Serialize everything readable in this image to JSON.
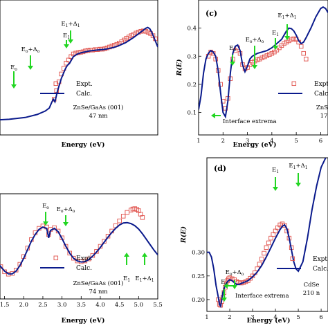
{
  "chart_data": [
    {
      "type": "scatter",
      "panel": "b",
      "title": "",
      "xlabel": "Energy (eV)",
      "ylabel": "",
      "xlim": [
        1.2,
        5.3
      ],
      "ylim": [
        0.15,
        0.46
      ],
      "xticks": [],
      "yticks": [],
      "legend": {
        "position": "right",
        "entries": [
          "Expt.",
          "Calc."
        ]
      },
      "sample_lines": [
        "ZnSe/GaAs (001)",
        "47 nm"
      ],
      "colors": {
        "expt": "#e0504a",
        "calc": "#0a1a8c",
        "arrow": "#22d622"
      },
      "annotations": [
        {
          "text": "E₀",
          "x": 2.7
        },
        {
          "text": "E₀+Δ₀",
          "x": 3.1
        },
        {
          "text": "E₁+Δ₁",
          "x": 5.05
        },
        {
          "text": "E₁",
          "x": 4.85
        }
      ],
      "series": [
        {
          "name": "Expt.",
          "marker": "open-square",
          "x": [
            2.72,
            2.78,
            2.84,
            2.9,
            2.96,
            3.02,
            3.08,
            3.14,
            3.2,
            3.26,
            3.32,
            3.38,
            3.44,
            3.5,
            3.56,
            3.62,
            3.68,
            3.74,
            3.8,
            3.86,
            3.92,
            3.98,
            4.04,
            4.1,
            4.16,
            4.22,
            4.28,
            4.34,
            4.4,
            4.46,
            4.52,
            4.58,
            4.64,
            4.7,
            4.76,
            4.82,
            4.88,
            4.94,
            5.0,
            5.06,
            5.12,
            5.18,
            5.24
          ],
          "y": [
            0.232,
            0.252,
            0.272,
            0.29,
            0.303,
            0.315,
            0.322,
            0.33,
            0.336,
            0.338,
            0.339,
            0.34,
            0.341,
            0.343,
            0.344,
            0.345,
            0.345,
            0.346,
            0.346,
            0.347,
            0.347,
            0.348,
            0.35,
            0.352,
            0.354,
            0.356,
            0.358,
            0.361,
            0.364,
            0.368,
            0.372,
            0.375,
            0.378,
            0.381,
            0.384,
            0.386,
            0.388,
            0.389,
            0.388,
            0.386,
            0.383,
            0.378,
            0.371
          ]
        },
        {
          "name": "Calc.",
          "line": "solid",
          "x": [
            1.2,
            1.6,
            2.0,
            2.3,
            2.5,
            2.6,
            2.66,
            2.7,
            2.74,
            2.8,
            2.9,
            3.0,
            3.05,
            3.1,
            3.15,
            3.2,
            3.3,
            3.4,
            3.5,
            3.6,
            3.7,
            3.8,
            3.9,
            4.0,
            4.1,
            4.2,
            4.3,
            4.4,
            4.5,
            4.6,
            4.7,
            4.8,
            4.9,
            5.0,
            5.05,
            5.1,
            5.15,
            5.2,
            5.3
          ],
          "y": [
            0.184,
            0.186,
            0.19,
            0.197,
            0.205,
            0.212,
            0.225,
            0.232,
            0.226,
            0.25,
            0.28,
            0.302,
            0.31,
            0.314,
            0.322,
            0.33,
            0.336,
            0.339,
            0.341,
            0.343,
            0.344,
            0.345,
            0.346,
            0.347,
            0.349,
            0.351,
            0.354,
            0.358,
            0.362,
            0.368,
            0.374,
            0.381,
            0.388,
            0.395,
            0.397,
            0.394,
            0.386,
            0.375,
            0.352
          ]
        }
      ]
    },
    {
      "type": "line",
      "panel": "c",
      "title": "",
      "xlabel": "Energy (eV)",
      "ylabel": "R(E)",
      "xlim": [
        1,
        6.3
      ],
      "ylim": [
        0.02,
        0.5
      ],
      "xticks": [
        "1",
        "2",
        "3",
        "4",
        "5",
        "6"
      ],
      "yticks": [
        "0.1",
        "0.2",
        "0.3",
        "0.4"
      ],
      "panel_label": "(c)",
      "legend": {
        "position": "right",
        "entries": [
          "Expt.",
          "Calc."
        ]
      },
      "sample_lines": [
        "ZnSe",
        "17"
      ],
      "colors": {
        "expt": "#e0504a",
        "calc": "#0a1a8c",
        "arrow": "#22d622"
      },
      "annotations": [
        {
          "text": "Interface extrema",
          "x": 2.2
        },
        {
          "text": "E₀",
          "x": 2.6
        },
        {
          "text": "E₀+Δ₀",
          "x": 3.1
        },
        {
          "text": "E₁",
          "x": 4.7
        },
        {
          "text": "E₁+Δ₁",
          "x": 5.0
        }
      ],
      "series": [
        {
          "name": "Expt.",
          "marker": "open-square",
          "x": [
            1.4,
            1.5,
            1.6,
            1.7,
            1.8,
            1.9,
            2.0,
            2.1,
            2.2,
            2.3,
            2.4,
            2.5,
            2.6,
            2.7,
            2.8,
            2.9,
            3.0,
            3.1,
            3.2,
            3.3,
            3.4,
            3.5,
            3.6,
            3.7,
            3.8,
            3.9,
            4.0,
            4.1,
            4.2,
            4.3,
            4.4,
            4.5,
            4.6,
            4.7,
            4.8,
            4.9,
            5.0,
            5.1,
            5.2,
            5.3,
            5.4
          ],
          "y": [
            0.3,
            0.315,
            0.31,
            0.29,
            0.25,
            0.2,
            0.14,
            0.115,
            0.15,
            0.22,
            0.29,
            0.32,
            0.33,
            0.31,
            0.27,
            0.255,
            0.26,
            0.27,
            0.278,
            0.283,
            0.287,
            0.29,
            0.294,
            0.298,
            0.302,
            0.306,
            0.31,
            0.315,
            0.322,
            0.33,
            0.338,
            0.345,
            0.35,
            0.355,
            0.36,
            0.362,
            0.36,
            0.35,
            0.335,
            0.31,
            0.29
          ]
        },
        {
          "name": "Calc.",
          "line": "solid",
          "x": [
            1.0,
            1.1,
            1.2,
            1.3,
            1.4,
            1.5,
            1.6,
            1.7,
            1.8,
            1.9,
            2.0,
            2.1,
            2.2,
            2.3,
            2.4,
            2.5,
            2.6,
            2.7,
            2.8,
            2.9,
            3.0,
            3.1,
            3.2,
            3.4,
            3.6,
            3.8,
            4.0,
            4.2,
            4.4,
            4.5,
            4.6,
            4.7,
            4.8,
            4.9,
            5.0,
            5.1,
            5.2,
            5.3,
            5.4,
            5.6,
            5.8,
            6.0,
            6.1,
            6.2,
            6.3
          ],
          "y": [
            0.11,
            0.16,
            0.24,
            0.29,
            0.31,
            0.32,
            0.315,
            0.3,
            0.25,
            0.17,
            0.1,
            0.085,
            0.14,
            0.24,
            0.31,
            0.335,
            0.34,
            0.32,
            0.27,
            0.245,
            0.265,
            0.29,
            0.3,
            0.31,
            0.315,
            0.32,
            0.33,
            0.345,
            0.36,
            0.375,
            0.39,
            0.4,
            0.398,
            0.39,
            0.375,
            0.355,
            0.345,
            0.35,
            0.365,
            0.4,
            0.44,
            0.47,
            0.475,
            0.47,
            0.455
          ]
        }
      ]
    },
    {
      "type": "scatter",
      "panel": "c2",
      "title": "",
      "xlabel": "Energy (eV)",
      "ylabel": "",
      "xlim": [
        1.2,
        5.5
      ],
      "ylim": [
        0.25,
        0.56
      ],
      "xticks": [
        "1.5",
        "2.0",
        "2.5",
        "3.0",
        "3.5",
        "4.0",
        "4.5",
        "5.0",
        "5.5"
      ],
      "yticks": [],
      "legend": {
        "position": "right",
        "entries": [
          "Expt.",
          "Calc."
        ]
      },
      "sample_lines": [
        "ZnSe/GaAs (001)",
        "74 nm"
      ],
      "colors": {
        "expt": "#e0504a",
        "calc": "#0a1a8c",
        "arrow": "#22d622"
      },
      "annotations": [
        {
          "text": "E₀",
          "x": 2.65
        },
        {
          "text": "E₀+Δ₀",
          "x": 3.05
        },
        {
          "text": "E₁",
          "x": 4.8
        },
        {
          "text": "E₁+Δ₁",
          "x": 5.05
        }
      ],
      "series": [
        {
          "name": "Expt.",
          "marker": "open-square",
          "x": [
            1.3,
            1.4,
            1.5,
            1.6,
            1.7,
            1.8,
            1.9,
            2.0,
            2.1,
            2.2,
            2.3,
            2.4,
            2.5,
            2.6,
            2.65,
            2.7,
            2.8,
            2.9,
            3.0,
            3.1,
            3.2,
            3.3,
            3.4,
            3.5,
            3.6,
            3.7,
            3.8,
            3.9,
            4.0,
            4.1,
            4.2,
            4.3,
            4.4,
            4.5,
            4.6,
            4.7,
            4.8,
            4.85,
            4.9,
            4.95,
            5.0,
            5.05,
            5.1
          ],
          "y": [
            0.36,
            0.345,
            0.33,
            0.323,
            0.325,
            0.335,
            0.352,
            0.375,
            0.4,
            0.425,
            0.445,
            0.458,
            0.465,
            0.462,
            0.44,
            0.455,
            0.46,
            0.45,
            0.43,
            0.405,
            0.385,
            0.37,
            0.362,
            0.36,
            0.362,
            0.368,
            0.378,
            0.39,
            0.405,
            0.42,
            0.435,
            0.45,
            0.466,
            0.48,
            0.494,
            0.505,
            0.512,
            0.515,
            0.516,
            0.514,
            0.51,
            0.5,
            0.49
          ]
        },
        {
          "name": "Calc.",
          "line": "solid",
          "x": [
            1.2,
            1.3,
            1.4,
            1.5,
            1.6,
            1.7,
            1.8,
            1.9,
            2.0,
            2.1,
            2.2,
            2.3,
            2.4,
            2.5,
            2.6,
            2.65,
            2.7,
            2.8,
            2.9,
            3.0,
            3.1,
            3.2,
            3.3,
            3.4,
            3.5,
            3.6,
            3.7,
            3.8,
            3.9,
            4.0,
            4.1,
            4.2,
            4.3,
            4.4,
            4.5,
            4.6,
            4.7,
            4.8,
            4.9,
            5.0,
            5.1,
            5.2,
            5.3,
            5.4,
            5.5
          ],
          "y": [
            0.38,
            0.36,
            0.345,
            0.332,
            0.324,
            0.324,
            0.332,
            0.348,
            0.37,
            0.395,
            0.42,
            0.44,
            0.455,
            0.462,
            0.458,
            0.43,
            0.452,
            0.458,
            0.448,
            0.428,
            0.405,
            0.385,
            0.37,
            0.362,
            0.359,
            0.36,
            0.366,
            0.376,
            0.388,
            0.402,
            0.417,
            0.432,
            0.446,
            0.458,
            0.468,
            0.474,
            0.475,
            0.472,
            0.466,
            0.456,
            0.442,
            0.426,
            0.41,
            0.394,
            0.38
          ]
        }
      ]
    },
    {
      "type": "line",
      "panel": "d",
      "title": "",
      "xlabel": "Energy (eV)",
      "ylabel": "R(E)",
      "xlim": [
        1,
        6.3
      ],
      "ylim": [
        0.175,
        0.5
      ],
      "xticks": [
        "1",
        "2",
        "3",
        "4",
        "5",
        "6"
      ],
      "yticks": [
        "0.20",
        "0.25",
        "0.30"
      ],
      "panel_label": "(d)",
      "legend": {
        "position": "right",
        "entries": [
          "Expt.",
          "Calc."
        ]
      },
      "sample_lines": [
        "CdSe",
        "210 n"
      ],
      "colors": {
        "expt": "#e0504a",
        "calc": "#0a1a8c",
        "arrow": "#22d622"
      },
      "annotations": [
        {
          "text": "E₀+Δ₀",
          "x": 2.3
        },
        {
          "text": "E₀",
          "x": 1.8
        },
        {
          "text": "E₁",
          "x": 4.1
        },
        {
          "text": "E₁+Δ₁",
          "x": 4.4
        },
        {
          "text": "Interface extrema",
          "x": 2.5
        }
      ],
      "series": [
        {
          "name": "Expt.",
          "marker": "open-square",
          "x": [
            1.5,
            1.55,
            1.6,
            1.65,
            1.7,
            1.75,
            1.8,
            1.85,
            1.9,
            1.95,
            2.0,
            2.1,
            2.2,
            2.3,
            2.4,
            2.5,
            2.6,
            2.7,
            2.8,
            2.9,
            3.0,
            3.1,
            3.2,
            3.3,
            3.4,
            3.5,
            3.6,
            3.7,
            3.8,
            3.9,
            4.0,
            4.1,
            4.2,
            4.3,
            4.4,
            4.5,
            4.6,
            4.7
          ],
          "y": [
            0.2,
            0.19,
            0.188,
            0.196,
            0.205,
            0.215,
            0.226,
            0.234,
            0.24,
            0.244,
            0.246,
            0.244,
            0.242,
            0.238,
            0.236,
            0.235,
            0.236,
            0.238,
            0.24,
            0.245,
            0.25,
            0.257,
            0.265,
            0.275,
            0.286,
            0.298,
            0.31,
            0.32,
            0.33,
            0.338,
            0.345,
            0.352,
            0.358,
            0.36,
            0.357,
            0.345,
            0.33,
            0.31
          ]
        },
        {
          "name": "Calc.",
          "line": "solid",
          "x": [
            1.0,
            1.1,
            1.2,
            1.3,
            1.4,
            1.5,
            1.55,
            1.6,
            1.65,
            1.7,
            1.8,
            1.9,
            2.0,
            2.1,
            2.2,
            2.3,
            2.4,
            2.5,
            2.6,
            2.7,
            2.8,
            2.9,
            3.0,
            3.2,
            3.4,
            3.6,
            3.8,
            4.0,
            4.2,
            4.3,
            4.4,
            4.5,
            4.6,
            4.7,
            4.8,
            4.9,
            5.0,
            5.2,
            5.4,
            5.6,
            5.8,
            6.0,
            6.2
          ],
          "y": [
            0.3,
            0.3,
            0.29,
            0.265,
            0.23,
            0.205,
            0.19,
            0.186,
            0.2,
            0.215,
            0.23,
            0.238,
            0.242,
            0.24,
            0.236,
            0.232,
            0.232,
            0.234,
            0.236,
            0.238,
            0.24,
            0.244,
            0.248,
            0.258,
            0.272,
            0.29,
            0.31,
            0.33,
            0.348,
            0.355,
            0.358,
            0.35,
            0.33,
            0.305,
            0.28,
            0.265,
            0.26,
            0.28,
            0.33,
            0.39,
            0.44,
            0.48,
            0.5
          ]
        }
      ]
    }
  ]
}
